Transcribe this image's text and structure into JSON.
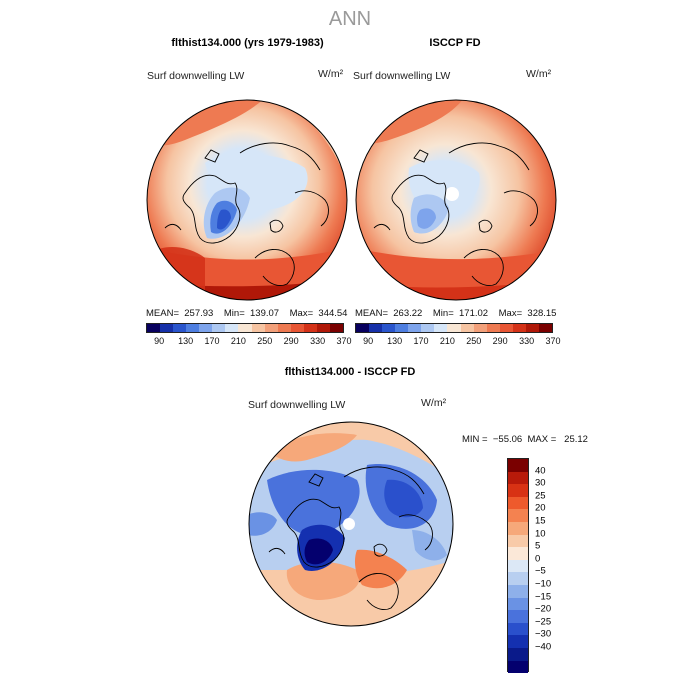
{
  "title": "ANN",
  "units_text": "W/m²",
  "variable": "Surf downwelling LW",
  "panels": [
    {
      "title": "flthist134.000 (yrs 1979-1983)",
      "mean": "257.93",
      "min": "139.07",
      "max": "344.54",
      "stats_text": "MEAN=  257.93    Min=  139.07    Max=  344.54"
    },
    {
      "title": "ISCCP FD",
      "mean": "263.22",
      "min": "171.02",
      "max": "328.15",
      "stats_text": "MEAN=  263.22    Min=  171.02    Max=  328.15"
    }
  ],
  "diff_panel": {
    "title": "flthist134.000 - ISCCP FD",
    "stats_text": "MIN =  −55.06  MAX =   25.12",
    "min": "-55.06",
    "max": "25.12"
  },
  "colorbar_abs": {
    "colors": [
      "#08005e",
      "#1630a8",
      "#2a55cc",
      "#4e7ee0",
      "#7ea4ec",
      "#adc8f2",
      "#d6e6f8",
      "#f8e6d4",
      "#f6c4a2",
      "#f2a07a",
      "#ee7a52",
      "#e85634",
      "#d43218",
      "#b01808",
      "#7a0000"
    ],
    "labels": [
      "90",
      "130",
      "170",
      "210",
      "250",
      "290",
      "330",
      "370"
    ]
  },
  "colorbar_diff": {
    "colors": [
      "#7a0000",
      "#b81a0a",
      "#d83214",
      "#ee5a2c",
      "#f48250",
      "#f6a87a",
      "#f8caa8",
      "#fbe8d8",
      "#dce8f6",
      "#b8cff0",
      "#8eb0ea",
      "#6a92e4",
      "#4a72dc",
      "#2a50cc",
      "#1430b0",
      "#0a1a8a",
      "#04006e"
    ],
    "labels": [
      "40",
      "30",
      "25",
      "20",
      "15",
      "10",
      "5",
      "0",
      "−5",
      "−10",
      "−15",
      "−20",
      "−25",
      "−30",
      "−40"
    ]
  }
}
